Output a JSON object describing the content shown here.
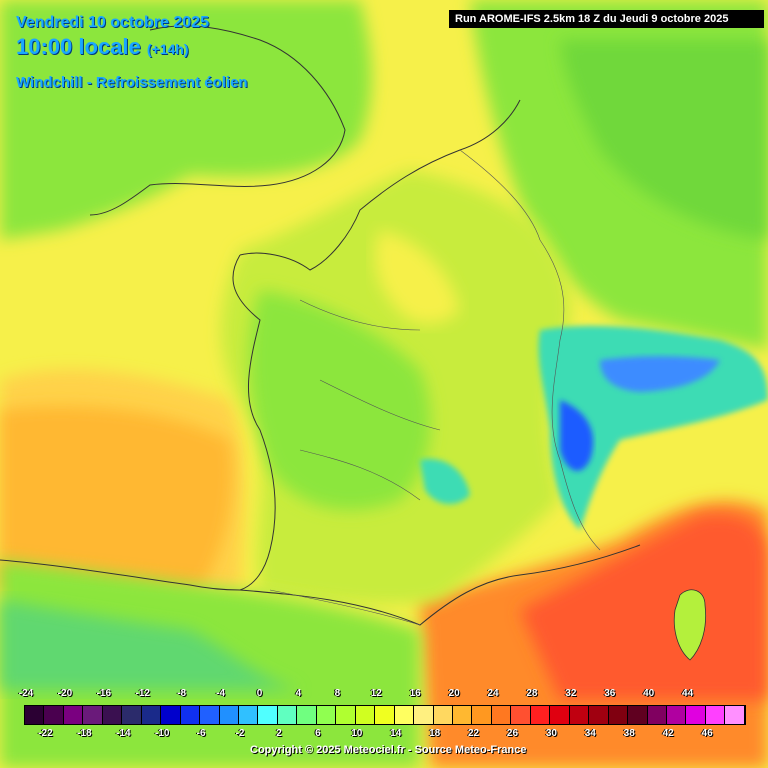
{
  "header": {
    "date": "Vendredi 10 octobre 2025",
    "time": "10:00 locale",
    "lead": "(+14h)",
    "parameter": "Windchill - Refroissement éolien",
    "run": "Run AROME-IFS 2.5km 18 Z du Jeudi 9 octobre 2025"
  },
  "legend": {
    "upper_labels": [
      "-24",
      "-20",
      "-16",
      "-12",
      "-8",
      "-4",
      "0",
      "4",
      "8",
      "12",
      "16",
      "20",
      "24",
      "28",
      "32",
      "36",
      "40",
      "44"
    ],
    "lower_labels": [
      "-22",
      "-18",
      "-14",
      "-10",
      "-6",
      "-2",
      "2",
      "6",
      "10",
      "14",
      "18",
      "22",
      "26",
      "30",
      "34",
      "38",
      "42",
      "46"
    ],
    "colors": [
      "#2b0033",
      "#4a004f",
      "#7a0080",
      "#6a1a7a",
      "#3a1050",
      "#2b2b6b",
      "#1a2a8a",
      "#0000cc",
      "#1030f0",
      "#2060ff",
      "#2090ff",
      "#30c0ff",
      "#50ffff",
      "#60ffc0",
      "#70ff80",
      "#90ff50",
      "#b0ff30",
      "#d0ff20",
      "#f0ff20",
      "#ffff60",
      "#fff080",
      "#ffd860",
      "#ffb830",
      "#ff9820",
      "#ff7820",
      "#ff5030",
      "#ff2020",
      "#e00010",
      "#c00010",
      "#a00010",
      "#800010",
      "#600020",
      "#800060",
      "#b000a0",
      "#e000e0",
      "#ff40ff",
      "#ff90ff"
    ]
  },
  "footer": {
    "copyright": "Copyright © 2025 Meteociel.fr - Source Meteo-France"
  },
  "colors": {
    "background_yellow": "#f6f04a",
    "green": "#8ce63c",
    "light_green": "#b4f03c",
    "orange_sea": "#ffa826",
    "red_sea": "#ff5a2e",
    "cyan_alps": "#3cdcdc",
    "blue_peaks": "#1a5cff"
  }
}
